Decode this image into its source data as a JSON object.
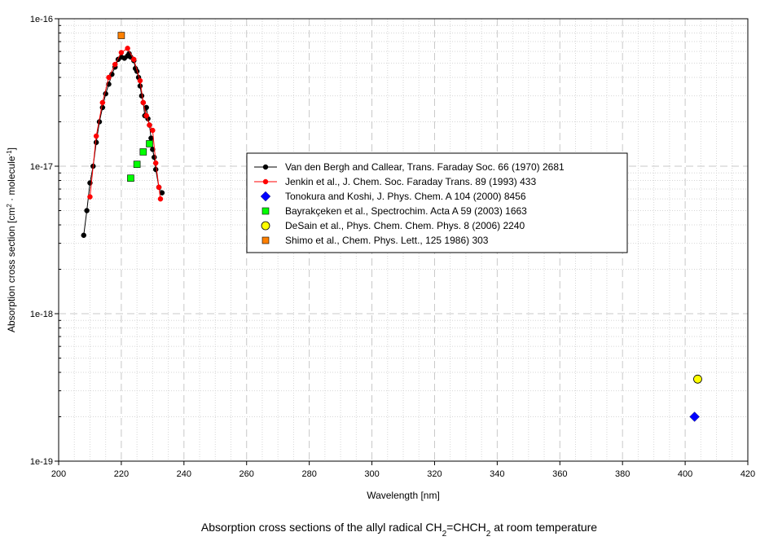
{
  "chart_data": {
    "type": "scatter",
    "xlabel": "Wavelength [nm]",
    "ylabel": "Absorption cross section [cm^2 · molecule^-1]",
    "ylabel_parts": [
      "Absorption cross section [cm",
      "2",
      " · molecule",
      "-1",
      "]"
    ],
    "caption_parts": [
      "Absorption cross sections of the allyl radical CH",
      "2",
      "=CHCH",
      "2",
      " at room temperature"
    ],
    "xlim": [
      200,
      420
    ],
    "ylim": [
      1e-19,
      1e-16
    ],
    "yscale": "log",
    "grid": true,
    "legend_position": "center-right",
    "x_tick_labels": [
      "200",
      "220",
      "240",
      "260",
      "280",
      "300",
      "320",
      "340",
      "360",
      "380",
      "400",
      "420"
    ],
    "y_tick_labels": [
      "1e-19",
      "1e-18",
      "1e-17",
      "1e-16"
    ],
    "series": [
      {
        "name": "Van den Bergh and Callear, Trans. Faraday Soc. 66 (1970) 2681",
        "color": "#000000",
        "marker": "circle-line",
        "points": [
          [
            208,
            3.4e-18
          ],
          [
            209,
            5e-18
          ],
          [
            210,
            7.7e-18
          ],
          [
            211,
            1e-17
          ],
          [
            212,
            1.45e-17
          ],
          [
            213,
            2e-17
          ],
          [
            214,
            2.5e-17
          ],
          [
            215,
            3.1e-17
          ],
          [
            216,
            3.6e-17
          ],
          [
            217,
            4.2e-17
          ],
          [
            218,
            4.7e-17
          ],
          [
            219,
            5.3e-17
          ],
          [
            220,
            5.5e-17
          ],
          [
            221,
            5.4e-17
          ],
          [
            222,
            5.6e-17
          ],
          [
            222.5,
            5.8e-17
          ],
          [
            223,
            5.5e-17
          ],
          [
            224,
            5.2e-17
          ],
          [
            224.5,
            4.6e-17
          ],
          [
            225,
            4.4e-17
          ],
          [
            225.5,
            4e-17
          ],
          [
            226,
            3.5e-17
          ],
          [
            226.5,
            3e-17
          ],
          [
            227,
            2.7e-17
          ],
          [
            227.5,
            2.2e-17
          ],
          [
            228,
            2.5e-17
          ],
          [
            228.5,
            2.1e-17
          ],
          [
            229,
            1.9e-17
          ],
          [
            229.5,
            1.55e-17
          ],
          [
            230,
            1.3e-17
          ],
          [
            230.5,
            1.15e-17
          ],
          [
            231,
            9.5e-18
          ],
          [
            232,
            7.2e-18
          ],
          [
            233,
            6.6e-18
          ]
        ]
      },
      {
        "name": "Jenkin et al., J. Chem. Soc. Faraday Trans. 89 (1993) 433",
        "color": "#ff0000",
        "marker": "circle-line",
        "points": [
          [
            210,
            6.2e-18
          ],
          [
            212,
            1.6e-17
          ],
          [
            214,
            2.7e-17
          ],
          [
            216,
            4e-17
          ],
          [
            218,
            4.9e-17
          ],
          [
            220,
            5.9e-17
          ],
          [
            222,
            6.3e-17
          ],
          [
            224,
            5.3e-17
          ],
          [
            226,
            3.8e-17
          ],
          [
            227,
            2.7e-17
          ],
          [
            228,
            2.2e-17
          ],
          [
            229,
            1.9e-17
          ],
          [
            230,
            1.75e-17
          ],
          [
            231,
            1.05e-17
          ],
          [
            232,
            7.2e-18
          ],
          [
            232.5,
            6e-18
          ]
        ]
      },
      {
        "name": "Tonokura and Koshi, J. Phys. Chem. A 104 (2000) 8456",
        "color": "#0000ff",
        "marker": "diamond",
        "points": [
          [
            403,
            2e-19
          ]
        ]
      },
      {
        "name": "Bayrakçeken et al., Spectrochim. Acta A 59 (2003) 1663",
        "color": "#00ff00",
        "marker": "square",
        "points": [
          [
            223,
            8.3e-18
          ],
          [
            225,
            1.03e-17
          ],
          [
            227,
            1.25e-17
          ],
          [
            229,
            1.42e-17
          ]
        ]
      },
      {
        "name": "DeSain et al., Phys. Chem. Chem. Phys. 8 (2006) 2240",
        "color": "#ffff00",
        "marker": "circle",
        "points": [
          [
            404,
            3.6e-19
          ]
        ]
      },
      {
        "name": "Shimo et al., Chem. Phys. Lett., 125 1986) 303",
        "color": "#ff8000",
        "marker": "square",
        "points": [
          [
            220,
            7.7e-17
          ]
        ]
      }
    ]
  }
}
